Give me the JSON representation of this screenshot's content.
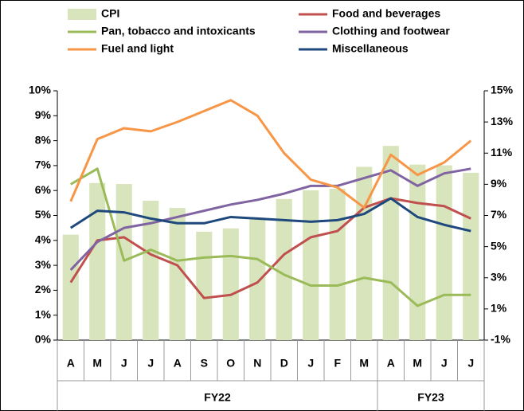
{
  "chart_data": {
    "type": "bar",
    "categories": [
      "A",
      "M",
      "J",
      "J",
      "A",
      "S",
      "O",
      "N",
      "D",
      "J",
      "F",
      "M",
      "A",
      "M",
      "J",
      "J"
    ],
    "groups": [
      "FY22",
      "FY22",
      "FY22",
      "FY22",
      "FY22",
      "FY22",
      "FY22",
      "FY22",
      "FY22",
      "FY22",
      "FY22",
      "FY22",
      "FY23",
      "FY23",
      "FY23",
      "FY23"
    ],
    "series": [
      {
        "name": "CPI",
        "type": "bar",
        "color": "#d7e4bc",
        "values": [
          4.23,
          6.3,
          6.26,
          5.59,
          5.3,
          4.35,
          4.48,
          4.91,
          5.66,
          6.01,
          6.07,
          6.95,
          7.79,
          7.04,
          7.01,
          6.71
        ]
      },
      {
        "name": "Food and beverages",
        "type": "line",
        "axis": "y2",
        "color": "#c0504d",
        "values": [
          2.7,
          5.4,
          5.6,
          4.5,
          3.8,
          1.7,
          1.9,
          2.7,
          4.5,
          5.6,
          6.0,
          7.5,
          8.1,
          7.8,
          7.6,
          6.8
        ]
      },
      {
        "name": "Pan, tobacco and intoxicants",
        "type": "line",
        "axis": "y2",
        "color": "#9bbb59",
        "values": [
          9.0,
          10.0,
          4.1,
          4.8,
          4.1,
          4.3,
          4.4,
          4.2,
          3.2,
          2.5,
          2.5,
          3.0,
          2.7,
          1.2,
          1.9,
          1.9
        ]
      },
      {
        "name": "Clothing and footwear",
        "type": "line",
        "axis": "y2",
        "color": "#8064a2",
        "values": [
          3.5,
          5.3,
          6.2,
          6.5,
          6.9,
          7.3,
          7.7,
          8.0,
          8.4,
          8.9,
          8.9,
          9.4,
          9.9,
          8.9,
          9.7,
          10.0
        ]
      },
      {
        "name": "Fuel and light",
        "type": "line",
        "axis": "y2",
        "color": "#f79646",
        "values": [
          7.9,
          11.9,
          12.6,
          12.4,
          13.0,
          13.7,
          14.4,
          13.4,
          11.0,
          9.3,
          8.8,
          7.5,
          10.9,
          9.6,
          10.4,
          11.8
        ]
      },
      {
        "name": "Miscellaneous",
        "type": "line",
        "axis": "y2",
        "color": "#1f497d",
        "values": [
          6.2,
          7.3,
          7.2,
          6.8,
          6.5,
          6.5,
          6.9,
          6.8,
          6.7,
          6.6,
          6.7,
          7.1,
          8.1,
          6.9,
          6.4,
          6.0
        ]
      }
    ],
    "ylim": [
      0,
      10
    ],
    "yticks": [
      {
        "value": 0,
        "label": "0%"
      },
      {
        "value": 1,
        "label": "1%"
      },
      {
        "value": 2,
        "label": "2%"
      },
      {
        "value": 3,
        "label": "3%"
      },
      {
        "value": 4,
        "label": "4%"
      },
      {
        "value": 5,
        "label": "5%"
      },
      {
        "value": 6,
        "label": "6%"
      },
      {
        "value": 7,
        "label": "7%"
      },
      {
        "value": 8,
        "label": "8%"
      },
      {
        "value": 9,
        "label": "9%"
      },
      {
        "value": 10,
        "label": "10%"
      }
    ],
    "y2lim": [
      -1,
      15
    ],
    "y2ticks": [
      {
        "value": -1,
        "label": "-1%"
      },
      {
        "value": 1,
        "label": "1%"
      },
      {
        "value": 3,
        "label": "3%"
      },
      {
        "value": 5,
        "label": "5%"
      },
      {
        "value": 7,
        "label": "7%"
      },
      {
        "value": 9,
        "label": "9%"
      },
      {
        "value": 11,
        "label": "11%"
      },
      {
        "value": 13,
        "label": "13%"
      },
      {
        "value": 15,
        "label": "15%"
      }
    ],
    "grid": false
  }
}
